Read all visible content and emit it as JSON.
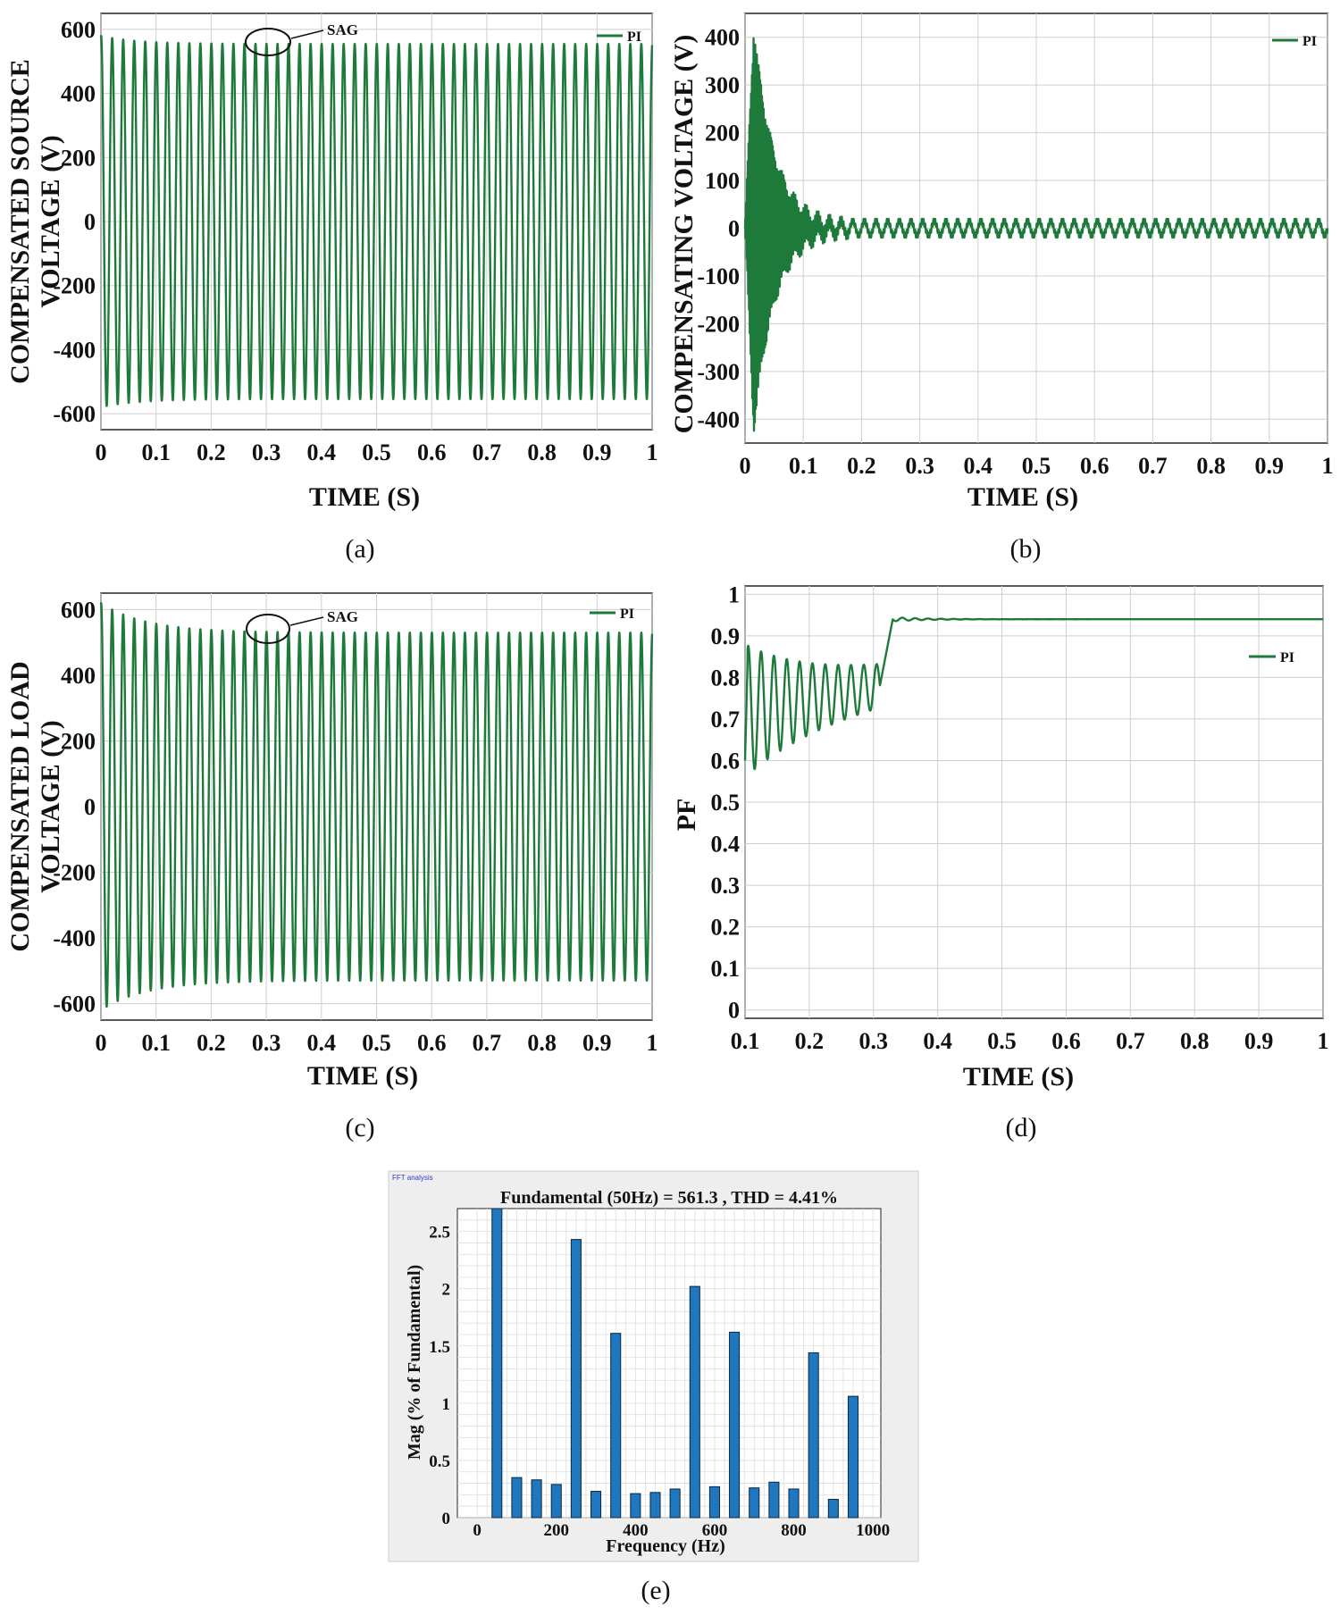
{
  "colors": {
    "trace": "#1e7a3a",
    "grid": "#cfcfcf",
    "bar": "#1f77c0",
    "bar_edge": "#0d2740",
    "panel_bg": "#eeeeee"
  },
  "chart_data": [
    {
      "id": "a",
      "type": "line",
      "caption": "(a)",
      "ylabel_line1": "COMPENSATED SOURCE",
      "ylabel_line2": "VOLTAGE (V)",
      "xlabel": "TIME (S)",
      "xlim": [
        0,
        1
      ],
      "ylim": [
        -650,
        650
      ],
      "xticks": [
        "0",
        "0.1",
        "0.2",
        "0.3",
        "0.4",
        "0.5",
        "0.6",
        "0.7",
        "0.8",
        "0.9",
        "1"
      ],
      "yticks": [
        "600",
        "400",
        "200",
        "0",
        "-200",
        "-400",
        "-600"
      ],
      "legend": "PI",
      "annotation": "SAG",
      "sag_marker_x": 0.3,
      "series": [
        {
          "name": "PI",
          "waveform": "sine",
          "frequency_hz": 50,
          "start_amplitude": 580,
          "steady_amplitude": 555,
          "settle_time_s": 0.2
        }
      ]
    },
    {
      "id": "b",
      "type": "line",
      "caption": "(b)",
      "ylabel_line1": "COMPENSATING VOLTAGE (V)",
      "ylabel_line2": "",
      "xlabel": "TIME (S)",
      "xlim": [
        0,
        1
      ],
      "ylim": [
        -450,
        450
      ],
      "xticks": [
        "0",
        "0.1",
        "0.2",
        "0.3",
        "0.4",
        "0.5",
        "0.6",
        "0.7",
        "0.8",
        "0.9",
        "1"
      ],
      "yticks": [
        "400",
        "300",
        "200",
        "100",
        "0",
        "-100",
        "-200",
        "-300",
        "-400"
      ],
      "legend": "PI",
      "series": [
        {
          "name": "PI",
          "waveform": "damped_oscillation",
          "peak": 420,
          "decay_until_s": 0.18,
          "steady_ripple": 15
        }
      ]
    },
    {
      "id": "c",
      "type": "line",
      "caption": "(c)",
      "ylabel_line1": "COMPENSATED LOAD",
      "ylabel_line2": "VOLTAGE (V)",
      "xlabel": "TIME (S)",
      "xlim": [
        0,
        1
      ],
      "ylim": [
        -650,
        650
      ],
      "xticks": [
        "0",
        "0.1",
        "0.2",
        "0.3",
        "0.4",
        "0.5",
        "0.6",
        "0.7",
        "0.8",
        "0.9",
        "1"
      ],
      "yticks": [
        "600",
        "400",
        "200",
        "0",
        "-200",
        "-400",
        "-600"
      ],
      "legend": "PI",
      "annotation": "SAG",
      "sag_marker_x": 0.3,
      "series": [
        {
          "name": "PI",
          "waveform": "sine",
          "frequency_hz": 50,
          "start_amplitude": 620,
          "steady_amplitude": 530,
          "settle_time_s": 0.25
        }
      ]
    },
    {
      "id": "d",
      "type": "line",
      "caption": "(d)",
      "ylabel_line1": "PF",
      "ylabel_line2": "",
      "xlabel": "TIME (S)",
      "xlim": [
        0.1,
        1
      ],
      "ylim": [
        -0.02,
        1.02
      ],
      "xticks": [
        "0.1",
        "0.2",
        "0.3",
        "0.4",
        "0.5",
        "0.6",
        "0.7",
        "0.8",
        "0.9",
        "1"
      ],
      "yticks": [
        "1",
        "0.9",
        "0.8",
        "0.7",
        "0.6",
        "0.5",
        "0.4",
        "0.3",
        "0.2",
        "0.1",
        "0"
      ],
      "legend": "PI",
      "series": [
        {
          "name": "PI",
          "waveform": "pf",
          "initial": 0.6,
          "oscillation_until_s": 0.31,
          "final": 0.94
        }
      ]
    },
    {
      "id": "e",
      "type": "bar",
      "caption": "(e)",
      "window_title": "FFT analysis",
      "title": "Fundamental (50Hz) = 561.3 , THD = 4.41%",
      "xlabel": "Frequency (Hz)",
      "ylabel": "Mag (% of Fundamental)",
      "xlim": [
        -50,
        1020
      ],
      "ylim": [
        0,
        2.7
      ],
      "xticks": [
        "0",
        "200",
        "400",
        "600",
        "800",
        "1000"
      ],
      "yticks": [
        "0",
        "0.5",
        "1",
        "1.5",
        "2",
        "2.5"
      ],
      "frequencies": [
        50,
        100,
        150,
        200,
        250,
        300,
        350,
        400,
        450,
        500,
        550,
        600,
        650,
        700,
        750,
        800,
        850,
        900,
        950
      ],
      "values": [
        2.72,
        0.35,
        0.33,
        0.29,
        2.43,
        0.23,
        1.61,
        0.21,
        0.22,
        0.25,
        2.02,
        0.27,
        1.62,
        0.26,
        0.31,
        0.25,
        1.44,
        0.16,
        1.06
      ]
    }
  ]
}
